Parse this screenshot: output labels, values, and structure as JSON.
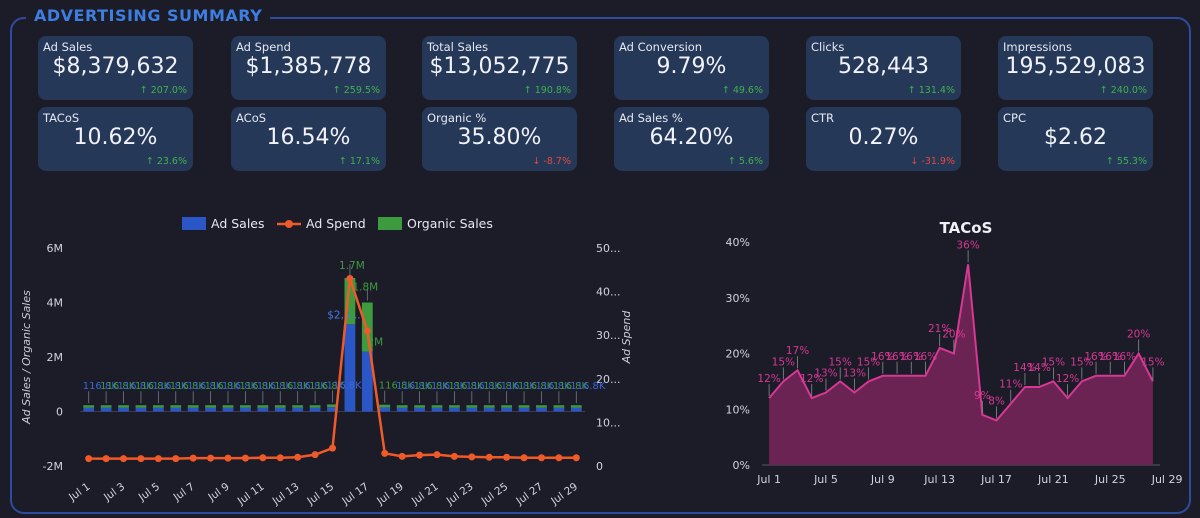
{
  "header": {
    "title": "ADVERTISING SUMMARY"
  },
  "kpis": [
    {
      "label": "Ad Sales",
      "value": "$8,379,632",
      "change": "207.0%",
      "dir": "up"
    },
    {
      "label": "Ad Spend",
      "value": "$1,385,778",
      "change": "259.5%",
      "dir": "up"
    },
    {
      "label": "Total Sales",
      "value": "$13,052,775",
      "change": "190.8%",
      "dir": "up"
    },
    {
      "label": "Ad Conversion",
      "value": "9.79%",
      "change": "49.6%",
      "dir": "up"
    },
    {
      "label": "Clicks",
      "value": "528,443",
      "change": "131.4%",
      "dir": "up"
    },
    {
      "label": "Impressions",
      "value": "195,529,083",
      "change": "240.0%",
      "dir": "up"
    },
    {
      "label": "TACoS",
      "value": "10.62%",
      "change": "23.6%",
      "dir": "up"
    },
    {
      "label": "ACoS",
      "value": "16.54%",
      "change": "17.1%",
      "dir": "up"
    },
    {
      "label": "Organic %",
      "value": "35.80%",
      "change": "-8.7%",
      "dir": "down"
    },
    {
      "label": "Ad Sales %",
      "value": "64.20%",
      "change": "5.6%",
      "dir": "up"
    },
    {
      "label": "CTR",
      "value": "0.27%",
      "change": "-31.9%",
      "dir": "down"
    },
    {
      "label": "CPC",
      "value": "$2.62",
      "change": "55.3%",
      "dir": "up"
    }
  ],
  "colors": {
    "ad_sales": "#2a56c6",
    "ad_spend": "#f05a28",
    "organic_sales": "#3e9a3e",
    "tacos": "#d63893",
    "tacos_fill": "#6a2352",
    "up": "#3fb14c",
    "down": "#e5483c"
  },
  "chart_data": [
    {
      "type": "bar",
      "title": "",
      "legend": [
        "Ad Sales",
        "Ad Spend",
        "Organic Sales"
      ],
      "legend_position": "top",
      "ylabel": "Ad Sales / Organic Sales",
      "y2label": "Ad Spend",
      "y_ticks": [
        "6M",
        "4M",
        "2M",
        "0",
        "-2M"
      ],
      "y_ticks_values": [
        6000000,
        4000000,
        2000000,
        0,
        -2000000
      ],
      "ylim": [
        -2000000,
        6000000
      ],
      "y2_ticks": [
        "50...",
        "40...",
        "30...",
        "20...",
        "10...",
        "0"
      ],
      "y2_ticks_values": [
        50000,
        40000,
        30000,
        20000,
        10000,
        0
      ],
      "y2lim": [
        0,
        50000
      ],
      "x_ticks": [
        "Jul 1",
        "Jul 3",
        "Jul 5",
        "Jul 7",
        "Jul 9",
        "Jul 11",
        "Jul 13",
        "Jul 15",
        "Jul 17",
        "Jul 19",
        "Jul 21",
        "Jul 23",
        "Jul 25",
        "Jul 27",
        "Jul 29"
      ],
      "categories": [
        "Jul 1",
        "Jul 2",
        "Jul 3",
        "Jul 4",
        "Jul 5",
        "Jul 6",
        "Jul 7",
        "Jul 8",
        "Jul 9",
        "Jul 10",
        "Jul 11",
        "Jul 12",
        "Jul 13",
        "Jul 14",
        "Jul 15",
        "Jul 16",
        "Jul 17",
        "Jul 18",
        "Jul 19",
        "Jul 20",
        "Jul 21",
        "Jul 22",
        "Jul 23",
        "Jul 24",
        "Jul 25",
        "Jul 26",
        "Jul 27",
        "Jul 28",
        "Jul 29"
      ],
      "series": [
        {
          "name": "Ad Sales",
          "kind": "bar",
          "values": [
            140000,
            140000,
            140000,
            140000,
            140000,
            140000,
            140000,
            140000,
            140000,
            140000,
            140000,
            140000,
            140000,
            140000,
            160000,
            3200000,
            2200000,
            150000,
            140000,
            140000,
            140000,
            140000,
            140000,
            140000,
            140000,
            140000,
            140000,
            140000,
            140000
          ]
        },
        {
          "name": "Organic Sales",
          "kind": "bar",
          "values": [
            90000,
            90000,
            90000,
            90000,
            90000,
            90000,
            90000,
            90000,
            90000,
            90000,
            90000,
            90000,
            90000,
            90000,
            100000,
            1700000,
            1800000,
            100000,
            90000,
            90000,
            90000,
            90000,
            90000,
            90000,
            90000,
            90000,
            90000,
            90000,
            90000
          ]
        },
        {
          "name": "Ad Spend",
          "kind": "line",
          "axis": "y2",
          "values": [
            1700,
            1700,
            1700,
            1700,
            1700,
            1700,
            1800,
            1800,
            1800,
            1800,
            1900,
            1900,
            2000,
            2600,
            4100,
            43000,
            31000,
            2900,
            2200,
            2500,
            2600,
            2200,
            2100,
            2000,
            2000,
            1900,
            1900,
            1900,
            1900
          ]
        }
      ],
      "data_labels": {
        "peak_spend": "1.7M",
        "organic_peak": "1.8M",
        "organic_peak2": "2M",
        "ad_peak": "$2,5...",
        "base_labels": "116.8K"
      }
    },
    {
      "type": "area",
      "title": "TACoS",
      "y_ticks": [
        "40%",
        "30%",
        "20%",
        "10%",
        "0%"
      ],
      "y_ticks_values": [
        40,
        30,
        20,
        10,
        0
      ],
      "ylim": [
        0,
        40
      ],
      "x_ticks": [
        "Jul 1",
        "Jul 5",
        "Jul 9",
        "Jul 13",
        "Jul 17",
        "Jul 21",
        "Jul 25",
        "Jul 29"
      ],
      "categories": [
        "Jul 1",
        "Jul 2",
        "Jul 3",
        "Jul 4",
        "Jul 5",
        "Jul 6",
        "Jul 7",
        "Jul 8",
        "Jul 9",
        "Jul 10",
        "Jul 11",
        "Jul 12",
        "Jul 13",
        "Jul 14",
        "Jul 15",
        "Jul 16",
        "Jul 17",
        "Jul 18",
        "Jul 19",
        "Jul 20",
        "Jul 21",
        "Jul 22",
        "Jul 23",
        "Jul 24",
        "Jul 25",
        "Jul 26",
        "Jul 27",
        "Jul 28"
      ],
      "values": [
        12,
        15,
        17,
        12,
        13,
        15,
        13,
        15,
        16,
        16,
        16,
        16,
        21,
        20,
        36,
        9,
        8,
        11,
        14,
        14,
        15,
        12,
        15,
        16,
        16,
        16,
        20,
        15
      ],
      "labels": [
        "12%",
        "15%",
        "17%",
        "12%",
        "13%",
        "15%",
        "13%",
        "15%",
        "16%",
        "16%",
        "16%",
        "16%",
        "21%",
        "20%",
        "36%",
        "9%",
        "8%",
        "11%",
        "14%",
        "14%",
        "15%",
        "12%",
        "15%",
        "16%",
        "16%",
        "16%",
        "20%",
        "15%"
      ]
    }
  ]
}
